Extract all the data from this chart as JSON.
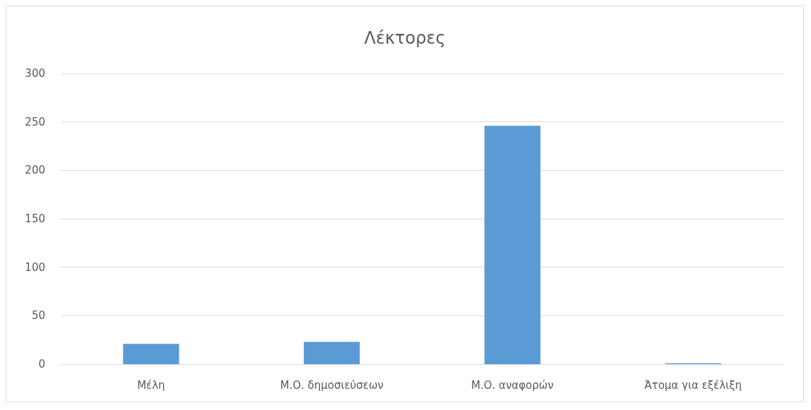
{
  "chart_data": {
    "type": "bar",
    "title": "Λέκτορες",
    "categories": [
      "Μέλη",
      "Μ.Ο. δημοσιεύσεων",
      "Μ.Ο. αναφορών",
      "Άτομα για εξέλιξη"
    ],
    "values": [
      21,
      23,
      246,
      1
    ],
    "color": "#5b9bd5",
    "ylim": [
      0,
      300
    ],
    "yticks": [
      0,
      50,
      100,
      150,
      200,
      250,
      300
    ],
    "grid": "y"
  }
}
